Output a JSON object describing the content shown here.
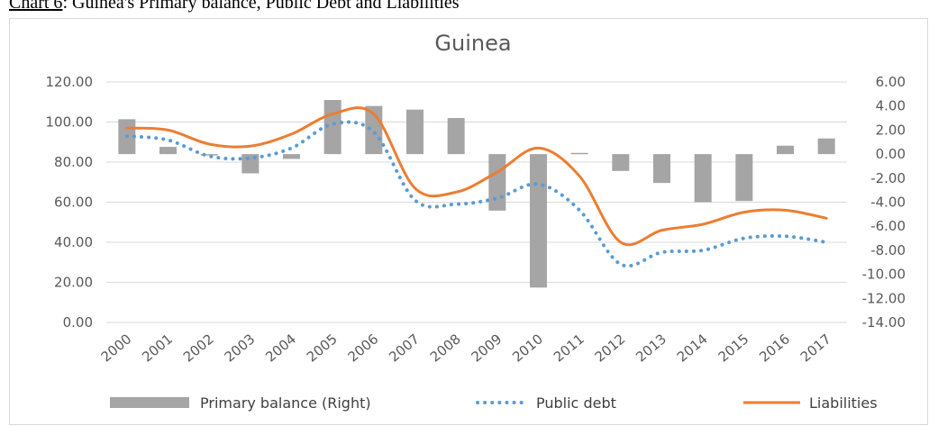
{
  "caption": {
    "label": "Chart 6",
    "text": ": Guinea's Primary balance, Public Debt and Liabilities"
  },
  "chart_data": {
    "type": "bar+line",
    "title": "Guinea",
    "categories": [
      "2000",
      "2001",
      "2002",
      "2003",
      "2004",
      "2005",
      "2006",
      "2007",
      "2008",
      "2009",
      "2010",
      "2011",
      "2012",
      "2013",
      "2014",
      "2015",
      "2016",
      "2017"
    ],
    "y_left": {
      "ticks": [
        "0.00",
        "20.00",
        "40.00",
        "60.00",
        "80.00",
        "100.00",
        "120.00"
      ],
      "ylim": [
        0,
        120
      ]
    },
    "y_right": {
      "ticks": [
        "-14.00",
        "-12.00",
        "-10.00",
        "-8.00",
        "-6.00",
        "-4.00",
        "-2.00",
        "0.00",
        "2.00",
        "4.00",
        "6.00"
      ],
      "ylim": [
        -14,
        6
      ]
    },
    "series": [
      {
        "name": "Primary balance (Right)",
        "kind": "bar",
        "axis": "right",
        "color": "#a5a5a5",
        "values": [
          2.9,
          0.6,
          0.0,
          -1.6,
          -0.4,
          4.5,
          4.0,
          3.7,
          3.0,
          -4.7,
          -11.1,
          0.1,
          -1.4,
          -2.4,
          -4.0,
          -3.9,
          0.7,
          1.3
        ]
      },
      {
        "name": "Public debt",
        "kind": "dotted-line",
        "axis": "left",
        "color": "#5b9bd5",
        "values": [
          93,
          91,
          83,
          82,
          87,
          99,
          95,
          61,
          59,
          62,
          69,
          56,
          29,
          35,
          36,
          42,
          43,
          40
        ]
      },
      {
        "name": "Liabilities",
        "kind": "line",
        "axis": "left",
        "color": "#ed7d31",
        "values": [
          97,
          96,
          89,
          88,
          94,
          104,
          104,
          67,
          65,
          75,
          87,
          73,
          40,
          46,
          49,
          55,
          56,
          52
        ]
      }
    ],
    "legend_position": "bottom",
    "grid": true
  }
}
